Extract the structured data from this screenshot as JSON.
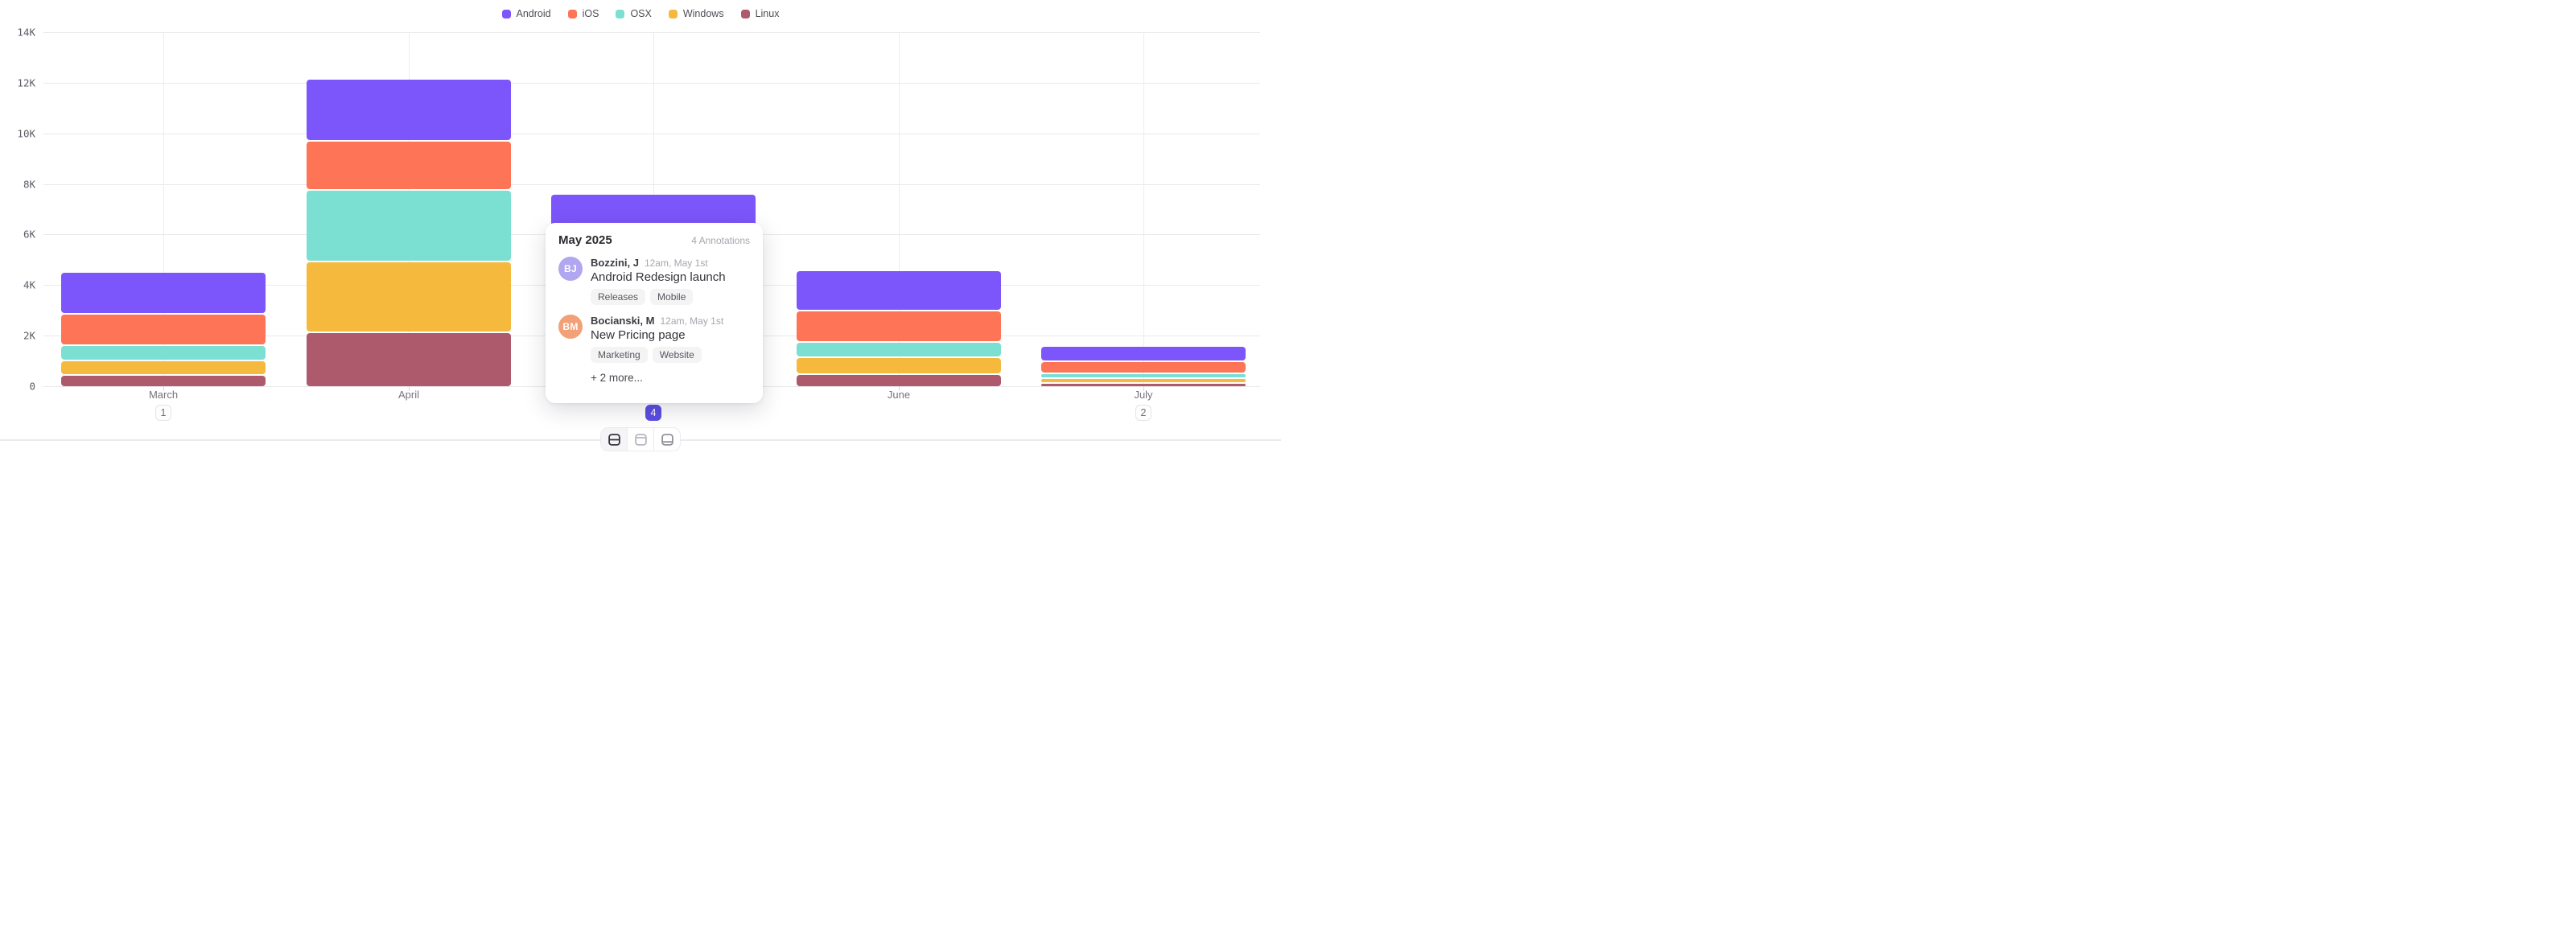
{
  "chart_data": {
    "type": "bar",
    "stacked": true,
    "title": "",
    "categories": [
      "March",
      "April",
      "May",
      "June",
      "July"
    ],
    "series": [
      {
        "name": "Android",
        "color": "#7C56FA",
        "values": [
          1650,
          2450,
          2050,
          1600,
          600
        ]
      },
      {
        "name": "iOS",
        "color": "#FD7456",
        "values": [
          1250,
          1950,
          1800,
          1250,
          470
        ]
      },
      {
        "name": "OSX",
        "color": "#7BDFD2",
        "values": [
          600,
          2850,
          1500,
          620,
          190
        ]
      },
      {
        "name": "Windows",
        "color": "#F5B93D",
        "values": [
          600,
          2800,
          1400,
          650,
          210
        ]
      },
      {
        "name": "Linux",
        "color": "#AE5A6D",
        "values": [
          450,
          2150,
          900,
          500,
          140
        ]
      }
    ],
    "stack_order_bottom_to_top": [
      "Linux",
      "Windows",
      "OSX",
      "iOS",
      "Android"
    ],
    "ylim": [
      0,
      14000
    ],
    "yticks": [
      {
        "label": "14K",
        "value": 14000
      },
      {
        "label": "12K",
        "value": 12000
      },
      {
        "label": "10K",
        "value": 10000
      },
      {
        "label": "8K",
        "value": 8000
      },
      {
        "label": "6K",
        "value": 6000
      },
      {
        "label": "4K",
        "value": 4000
      },
      {
        "label": "2K",
        "value": 2000
      },
      {
        "label": "0",
        "value": 0
      }
    ],
    "grid": "horizontal lines + vertical line at each month center",
    "legend_position": "top-center",
    "annotation_badges": [
      {
        "category": "March",
        "count": "1",
        "active": false
      },
      {
        "category": "May",
        "count": "4",
        "active": true
      },
      {
        "category": "July",
        "count": "2",
        "active": false
      }
    ]
  },
  "tooltip": {
    "title": "May 2025",
    "count_label": "4 Annotations",
    "items": [
      {
        "initials": "BJ",
        "avatar_color": "#B1A6F0",
        "name": "Bozzini, J",
        "time": "12am, May 1st",
        "text": "Android Redesign launch",
        "tags": [
          "Releases",
          "Mobile"
        ]
      },
      {
        "initials": "BM",
        "avatar_color": "#F2A078",
        "name": "Bocianski, M",
        "time": "12am, May 1st",
        "text": "New Pricing page",
        "tags": [
          "Marketing",
          "Website"
        ]
      }
    ],
    "more_label": "+ 2 more..."
  },
  "toolbar": {
    "buttons": [
      {
        "icon": "layout-split-middle-icon",
        "active": true
      },
      {
        "icon": "layout-line-top-icon",
        "active": false
      },
      {
        "icon": "layout-line-bottom-icon",
        "active": false
      }
    ]
  },
  "colors": {
    "accent_badge": "#5A4DE3",
    "grid": "#EAEAEE",
    "axis_text": "#5C5C66",
    "month_text": "#74747D"
  }
}
